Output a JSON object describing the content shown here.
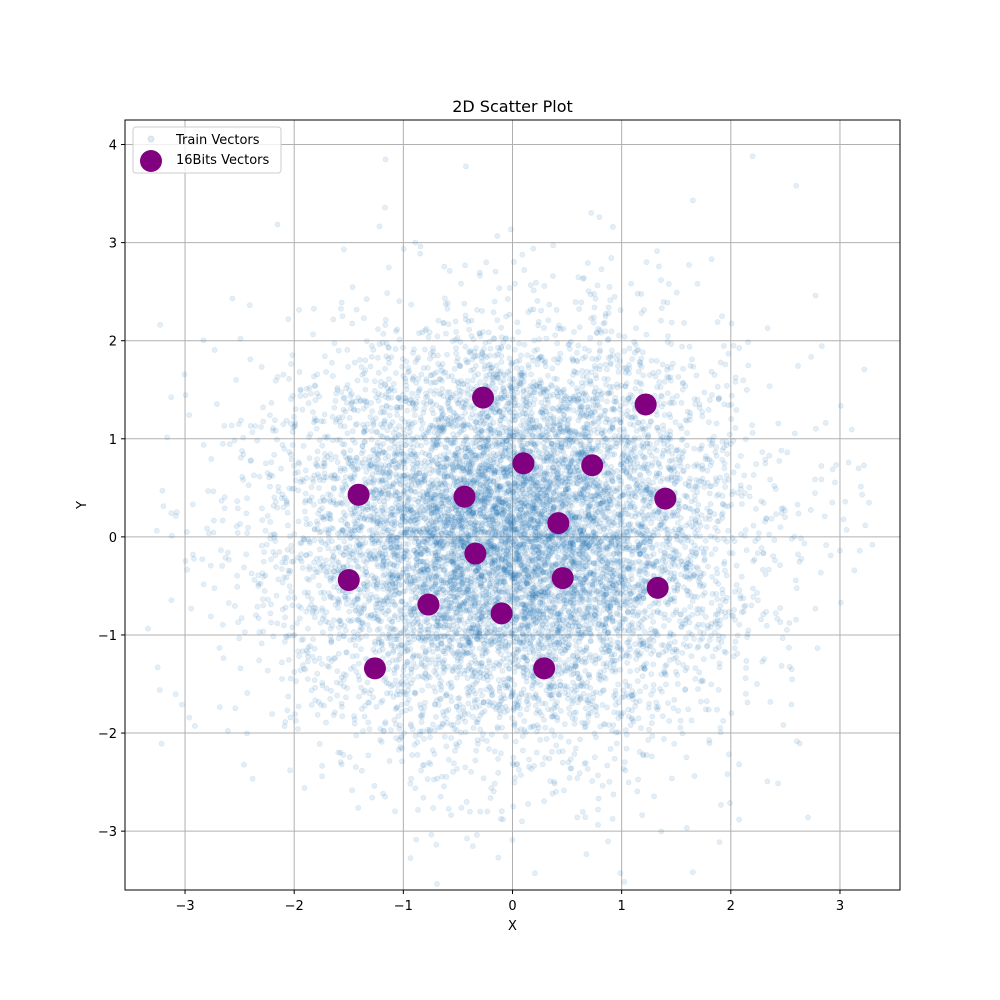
{
  "chart_data": {
    "type": "scatter",
    "title": "2D Scatter Plot",
    "xlabel": "X",
    "ylabel": "Y",
    "xlim": [
      -3.55,
      3.55
    ],
    "ylim": [
      -3.6,
      4.25
    ],
    "xticks": [
      -3,
      -2,
      -1,
      0,
      1,
      2,
      3
    ],
    "yticks": [
      -3,
      -2,
      -1,
      0,
      1,
      2,
      3,
      4
    ],
    "xtick_labels": [
      "−3",
      "−2",
      "−1",
      "0",
      "1",
      "2",
      "3"
    ],
    "ytick_labels": [
      "−3",
      "−2",
      "−1",
      "0",
      "1",
      "2",
      "3",
      "4"
    ],
    "grid": true,
    "legend_position": "upper-left",
    "series": [
      {
        "name": "Train Vectors",
        "color": "#1f77b4",
        "opacity": 0.12,
        "distribution": "standard normal, 2D",
        "approx_count": 10000,
        "sample_points": [
          [
            3.22,
            0.73
          ],
          [
            -3.25,
            -1.33
          ],
          [
            2.2,
            3.88
          ],
          [
            2.6,
            3.58
          ],
          [
            -0.13,
            -3.27
          ],
          [
            2.93,
            0.35
          ]
        ]
      },
      {
        "name": "16Bits Vectors",
        "color": "#800080",
        "points": [
          [
            -0.27,
            1.42
          ],
          [
            1.22,
            1.35
          ],
          [
            0.1,
            0.75
          ],
          [
            0.73,
            0.73
          ],
          [
            -1.41,
            0.43
          ],
          [
            -0.44,
            0.41
          ],
          [
            1.4,
            0.39
          ],
          [
            0.42,
            0.14
          ],
          [
            -0.34,
            -0.17
          ],
          [
            -1.5,
            -0.44
          ],
          [
            0.46,
            -0.42
          ],
          [
            1.33,
            -0.52
          ],
          [
            -0.77,
            -0.69
          ],
          [
            -0.1,
            -0.78
          ],
          [
            -1.26,
            -1.34
          ],
          [
            0.29,
            -1.34
          ]
        ]
      }
    ]
  }
}
